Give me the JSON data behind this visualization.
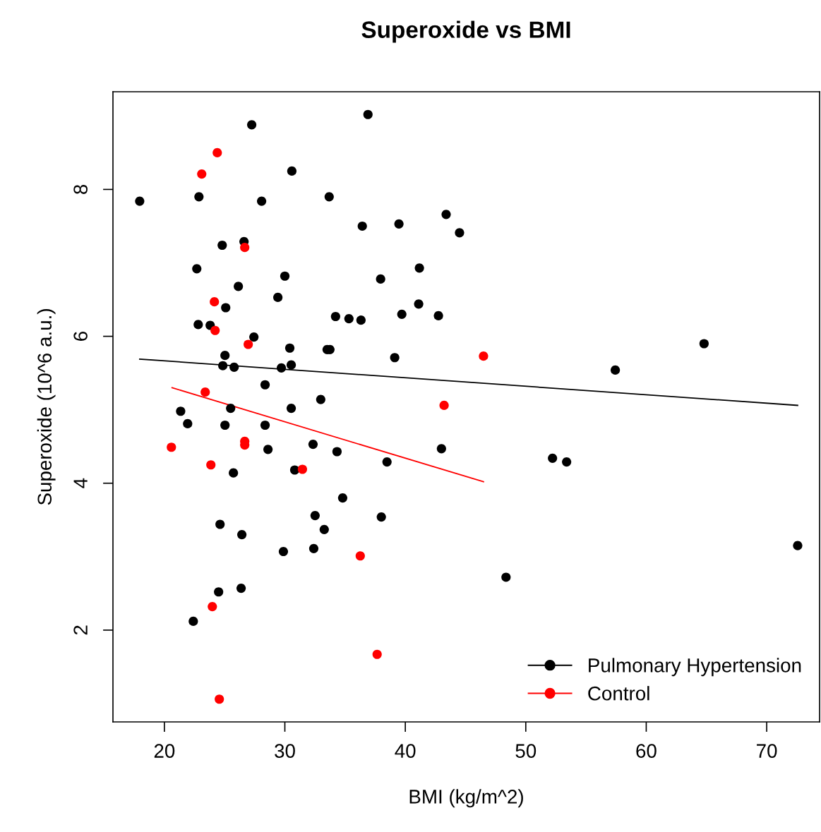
{
  "chart_data": {
    "type": "scatter",
    "title": "Superoxide vs BMI",
    "xlabel": "BMI (kg/m^2)",
    "ylabel": "Superoxide (10^6 a.u.)",
    "xlim": [
      15.73,
      74.39
    ],
    "ylim": [
      0.75,
      9.33
    ],
    "xticks": [
      20,
      30,
      40,
      50,
      60,
      70
    ],
    "yticks": [
      2,
      4,
      6,
      8
    ],
    "grid": false,
    "legend": "bottom right",
    "marker": "circle",
    "series": [
      {
        "name": "Pulmonary Hypertension",
        "color": "#000000",
        "x": [
          17.95,
          27.25,
          36.9,
          22.87,
          30.58,
          28.07,
          33.68,
          26.61,
          24.8,
          36.43,
          39.47,
          43.39,
          44.5,
          22.69,
          30.0,
          41.17,
          37.95,
          26.14,
          29.42,
          25.09,
          41.11,
          39.71,
          42.75,
          34.21,
          35.32,
          36.32,
          22.81,
          23.8,
          27.43,
          30.41,
          33.51,
          33.74,
          39.12,
          25.03,
          24.85,
          25.79,
          30.53,
          29.71,
          28.36,
          32.98,
          21.35,
          21.93,
          25.5,
          30.53,
          25.03,
          28.36,
          32.34,
          28.6,
          34.33,
          43.0,
          38.48,
          30.82,
          25.73,
          52.22,
          53.39,
          57.43,
          64.8,
          34.8,
          32.51,
          38.01,
          33.27,
          24.62,
          26.43,
          29.88,
          32.4,
          72.57,
          48.36,
          26.37,
          24.5,
          22.4
        ],
        "values": [
          7.84,
          8.88,
          9.02,
          7.9,
          8.25,
          7.84,
          7.9,
          7.29,
          7.24,
          7.5,
          7.53,
          7.66,
          7.41,
          6.92,
          6.82,
          6.93,
          6.78,
          6.68,
          6.53,
          6.39,
          6.44,
          6.3,
          6.28,
          6.27,
          6.24,
          6.22,
          6.16,
          6.15,
          5.99,
          5.84,
          5.82,
          5.82,
          5.71,
          5.74,
          5.6,
          5.58,
          5.61,
          5.57,
          5.34,
          5.14,
          4.98,
          4.81,
          5.02,
          5.02,
          4.79,
          4.79,
          4.53,
          4.46,
          4.43,
          4.47,
          4.29,
          4.18,
          4.14,
          4.34,
          4.29,
          5.54,
          5.9,
          3.8,
          3.56,
          3.54,
          3.37,
          3.44,
          3.3,
          3.07,
          3.11,
          3.15,
          2.72,
          2.57,
          2.52,
          2.12
        ]
      },
      {
        "name": "Control",
        "color": "#ff0000",
        "x": [
          24.39,
          23.1,
          26.67,
          24.15,
          24.21,
          26.96,
          46.49,
          23.39,
          43.22,
          26.67,
          26.67,
          20.58,
          23.86,
          31.46,
          36.26,
          23.98,
          37.66,
          24.56
        ],
        "values": [
          8.5,
          8.21,
          7.21,
          6.47,
          6.08,
          5.89,
          5.73,
          5.24,
          5.06,
          4.57,
          4.52,
          4.49,
          4.25,
          4.19,
          3.01,
          2.32,
          1.67,
          1.06
        ]
      },
      {
        "color": "#000000",
        "type": "line",
        "marker": "none",
        "x": [
          17.95,
          72.57
        ],
        "values": [
          5.69,
          5.06
        ]
      },
      {
        "color": "#ff0000",
        "type": "line",
        "marker": "none",
        "x": [
          20.64,
          46.49
        ],
        "values": [
          5.3,
          4.02
        ]
      }
    ]
  }
}
